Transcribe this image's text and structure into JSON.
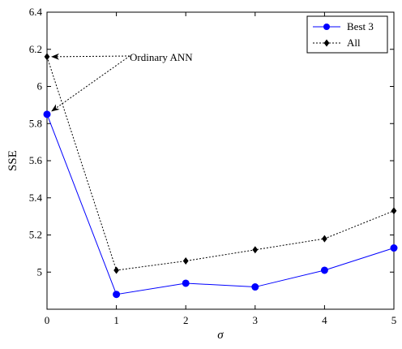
{
  "chart_data": {
    "type": "line",
    "xlabel": "σ",
    "ylabel": "SSE",
    "xlim": [
      0,
      5
    ],
    "ylim": [
      4.8,
      6.4
    ],
    "x_ticks": [
      "0",
      "1",
      "2",
      "3",
      "4",
      "5"
    ],
    "y_ticks": [
      "5",
      "5.2",
      "5.4",
      "5.6",
      "5.8",
      "6",
      "6.2",
      "6.4"
    ],
    "x": [
      0,
      1,
      2,
      3,
      4,
      5
    ],
    "series": [
      {
        "name": "Best 3",
        "values": [
          5.85,
          4.88,
          4.94,
          4.92,
          5.01,
          5.13
        ],
        "color": "#0000ff",
        "line_style": "solid",
        "marker": "circle"
      },
      {
        "name": "All",
        "values": [
          6.16,
          5.01,
          5.06,
          5.12,
          5.18,
          5.33
        ],
        "color": "#000000",
        "line_style": "dotted",
        "marker": "diamond"
      }
    ],
    "annotation": {
      "text": "Ordinary ANN",
      "targets": [
        [
          0,
          6.16
        ],
        [
          0,
          5.85
        ]
      ]
    },
    "legend_position": "top-right",
    "grid": false
  }
}
